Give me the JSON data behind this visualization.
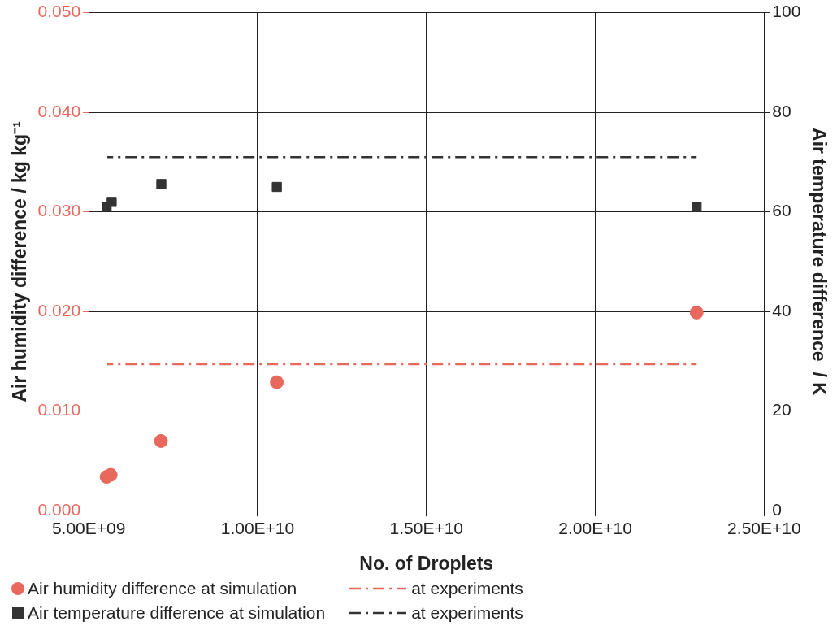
{
  "chart_data": {
    "type": "scatter",
    "xlabel": "No. of Droplets",
    "ylabel": "Air humidity difference / kg kg⁻¹",
    "y2label": "Air temperature difference  / K",
    "xlim": [
      5000000000.0,
      25000000000.0
    ],
    "xticks": [
      {
        "value": 5000000000.0,
        "label": "5.00E+09"
      },
      {
        "value": 10000000000.0,
        "label": "1.00E+10"
      },
      {
        "value": 15000000000.0,
        "label": "1.50E+10"
      },
      {
        "value": 20000000000.0,
        "label": "2.00E+10"
      },
      {
        "value": 25000000000.0,
        "label": "2.50E+10"
      }
    ],
    "ylim": [
      0,
      0.05
    ],
    "yticks": [
      {
        "value": 0,
        "label": "0.000"
      },
      {
        "value": 0.01,
        "label": "0.010"
      },
      {
        "value": 0.02,
        "label": "0.020"
      },
      {
        "value": 0.03,
        "label": "0.030"
      },
      {
        "value": 0.04,
        "label": "0.040"
      },
      {
        "value": 0.05,
        "label": "0.050"
      }
    ],
    "y2lim": [
      0,
      100
    ],
    "y2ticks": [
      0,
      20,
      40,
      60,
      80,
      100
    ],
    "grid": true,
    "legend": "bottom left",
    "series": [
      {
        "name": "Air humidity difference at simulation",
        "type": "scatter",
        "color": "#e8685e",
        "marker": "circle",
        "x": [
          5530000000.0,
          5650000000.0,
          7140000000.0,
          10570000000.0,
          23000000000.0
        ],
        "values": [
          0.0034,
          0.0036,
          0.007,
          0.0129,
          0.0199
        ]
      },
      {
        "name": "at experiments",
        "type": "line",
        "color": "#e8685e",
        "line_style": "dashed",
        "marker": "none",
        "x": [
          5550000000.0,
          23000000000.0
        ],
        "values": [
          0.0147,
          0.0147
        ]
      },
      {
        "name": "Air temperature difference at simulation",
        "type": "scatter",
        "axis": "y2",
        "color": "#333333",
        "marker": "square",
        "x": [
          5530000000.0,
          5680000000.0,
          7150000000.0,
          10570000000.0,
          23000000000.0
        ],
        "values": [
          61,
          62,
          65.6,
          65,
          61
        ]
      },
      {
        "name": "at experiments",
        "type": "line",
        "axis": "y2",
        "color": "#333333",
        "line_style": "dashed",
        "marker": "none",
        "x": [
          5550000000.0,
          23000000000.0
        ],
        "values": [
          71,
          71
        ]
      }
    ]
  }
}
